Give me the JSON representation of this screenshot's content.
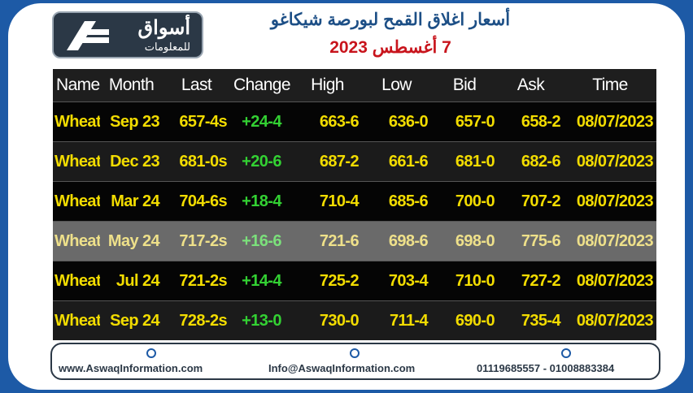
{
  "logo": {
    "name": "أسواق",
    "tagline": "للمعلومات"
  },
  "header": {
    "title": "أسعار اغلاق القمح لبورصة شيكاغو",
    "subtitle": "7 أغسطس 2023"
  },
  "table": {
    "columns": [
      "Name",
      "Month",
      "Last",
      "Change",
      "High",
      "Low",
      "Bid",
      "Ask",
      "Time"
    ],
    "rows": [
      [
        "Wheat",
        "Sep 23",
        "657-4s",
        "+24-4",
        "663-6",
        "636-0",
        "657-0",
        "658-2",
        "08/07/2023"
      ],
      [
        "Wheat",
        "Dec 23",
        "681-0s",
        "+20-6",
        "687-2",
        "661-6",
        "681-0",
        "682-6",
        "08/07/2023"
      ],
      [
        "Wheat",
        "Mar 24",
        "704-6s",
        "+18-4",
        "710-4",
        "685-6",
        "700-0",
        "707-2",
        "08/07/2023"
      ],
      [
        "Wheat",
        "May 24",
        "717-2s",
        "+16-6",
        "721-6",
        "698-6",
        "698-0",
        "775-6",
        "08/07/2023"
      ],
      [
        "Wheat",
        "Jul 24",
        "721-2s",
        "+14-4",
        "725-2",
        "703-4",
        "710-0",
        "727-2",
        "08/07/2023"
      ],
      [
        "Wheat",
        "Sep 24",
        "728-2s",
        "+13-0",
        "730-0",
        "711-4",
        "690-0",
        "735-4",
        "08/07/2023"
      ]
    ]
  },
  "footer": {
    "website": "www.AswaqInformation.com",
    "email": "Info@AswaqInformation.com",
    "phone": "01119685557 - 01008883384"
  }
}
